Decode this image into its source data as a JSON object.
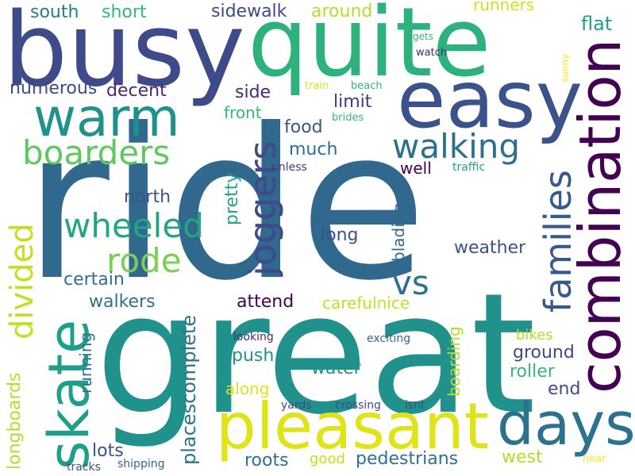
{
  "words": {
    "ride": "ride",
    "great": "great",
    "busy": "busy",
    "quite": "quite",
    "easy": "easy",
    "warm": "warm",
    "combination": "combination",
    "pleasant": "pleasant",
    "days": "days",
    "skate": "skate",
    "boarders": "boarders",
    "walking": "walking",
    "wheeled": "wheeled",
    "rode": "rode",
    "joggers": "joggers",
    "families": "families",
    "divided": "divided",
    "vs": "vs",
    "south": "south",
    "short": "short",
    "sidewalk": "sidewalk",
    "around": "around",
    "runners": "runners",
    "flat": "flat",
    "numerous": "numerous",
    "decent": "decent",
    "side": "side",
    "limit": "limit",
    "front": "front",
    "food": "food",
    "much": "much",
    "well": "well",
    "unless": "unless",
    "traffic": "traffic",
    "north": "north",
    "pretty": "pretty",
    "certain": "certain",
    "long": "long",
    "weather": "weather",
    "blading": "blading",
    "attend": "attend",
    "walkers": "walkers",
    "carefulnice": "carefulnice",
    "placescomplete": "placescomplete",
    "push": "push",
    "ground": "ground",
    "bikes": "bikes",
    "looking": "looking",
    "exciting": "exciting",
    "water": "water",
    "roller": "roller",
    "end": "end",
    "along": "along",
    "running": "running",
    "boarding": "boarding",
    "longboards": "longboards",
    "yards": "yards",
    "crossing": "crossing",
    "isnt": "isnt",
    "lots": "lots",
    "roots": "roots",
    "good": "good",
    "pedestrians": "pedestrians",
    "west": "west",
    "tracks": "tracks",
    "shipping": "shipping",
    "near": "near",
    "gets": "gets",
    "watch": "watch",
    "sunny": "sunny",
    "train": "train",
    "beach": "beach",
    "brides": "brides"
  },
  "palette": {
    "deep_purple": "#440154",
    "indigo": "#3e4a89",
    "blue": "#31688e",
    "teal": "#26828e",
    "sea_green": "#1f9e89",
    "green": "#35b779",
    "light_green": "#6ece58",
    "yellow_green": "#b5de2b",
    "yellow": "#fde725"
  }
}
